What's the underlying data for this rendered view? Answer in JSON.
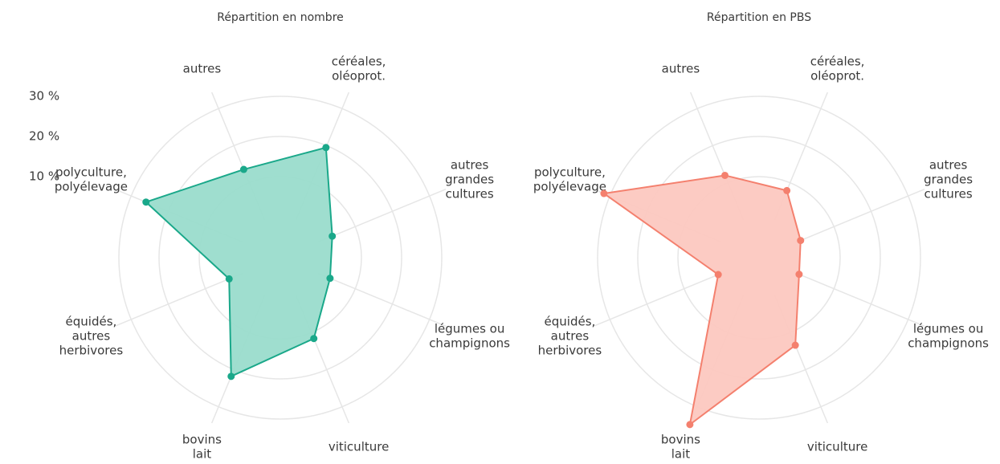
{
  "chart_data": [
    {
      "type": "radar",
      "title": "Répartition en nombre",
      "categories": [
        [
          "céréales,",
          "oléoprot."
        ],
        [
          "autres",
          "grandes",
          "cultures"
        ],
        [
          "légumes ou",
          "champignons"
        ],
        [
          "viticulture"
        ],
        [
          "bovins",
          "lait"
        ],
        [
          "équidés,",
          "autres",
          "herbivores"
        ],
        [
          "polyculture,",
          "polyélevage"
        ],
        [
          "autres"
        ]
      ],
      "values": [
        19.5,
        3.8,
        3.2,
        11.6,
        21.8,
        3.6,
        26,
        13.6
      ],
      "color": "#1aa88a",
      "fill": "#9adccc",
      "ylim": [
        0,
        30
      ],
      "yticks": [
        {
          "value": 10,
          "label": "10 %"
        },
        {
          "value": 20,
          "label": "20 %"
        },
        {
          "value": 30,
          "label": "30 %"
        }
      ],
      "grid": true
    },
    {
      "type": "radar",
      "title": "Répartition en PBS",
      "categories": [
        [
          "céréales,",
          "oléoprot."
        ],
        [
          "autres",
          "grandes",
          "cultures"
        ],
        [
          "légumes ou",
          "champignons"
        ],
        [
          "viticulture"
        ],
        [
          "bovins",
          "lait"
        ],
        [
          "équidés,",
          "autres",
          "herbivores"
        ],
        [
          "polyculture,",
          "polyélevage"
        ],
        [
          "autres"
        ]
      ],
      "values": [
        7.9,
        1.0,
        0.6,
        13.4,
        34.8,
        0.8,
        31.6,
        12
      ],
      "color": "#f4806e",
      "fill": "#fcc8c0",
      "ylim": [
        0,
        30
      ],
      "yticks": [
        10,
        20,
        30
      ],
      "grid": true
    }
  ]
}
